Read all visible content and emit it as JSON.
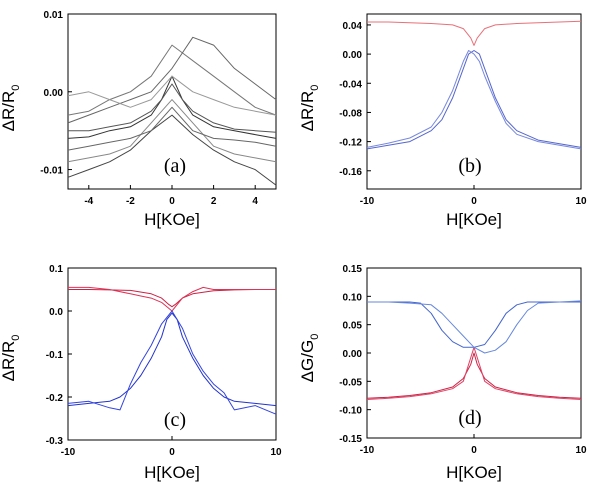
{
  "chart_data": [
    {
      "id": "a",
      "type": "line",
      "panel_label": "(a)",
      "xlabel": "H[KOe]",
      "ylabel": "ΔR/R",
      "ylabel_sub": "0",
      "xlim": [
        -5,
        5
      ],
      "ylim": [
        -0.0125,
        0.01
      ],
      "xticks": [
        {
          "v": -4,
          "t": "-4"
        },
        {
          "v": -2,
          "t": "-2"
        },
        {
          "v": 0,
          "t": "0"
        },
        {
          "v": 2,
          "t": "2"
        },
        {
          "v": 4,
          "t": "4"
        }
      ],
      "yticks": [
        {
          "v": 0.01,
          "t": "0.01"
        },
        {
          "v": 0.0,
          "t": "0.00"
        },
        {
          "v": -0.01,
          "t": "-0.01"
        }
      ],
      "series": [
        {
          "color": "#333333",
          "x": [
            -5,
            -4,
            -3,
            -2,
            -1,
            -0.5,
            0,
            0.5,
            1,
            2,
            3,
            4,
            5
          ],
          "y": [
            -0.006,
            -0.0058,
            -0.005,
            -0.0045,
            -0.003,
            -0.001,
            0.002,
            -0.001,
            -0.003,
            -0.0045,
            -0.005,
            -0.0055,
            -0.006
          ]
        },
        {
          "color": "#555555",
          "x": [
            -5,
            -4,
            -3,
            -2,
            -1,
            -0.5,
            0,
            0.5,
            1,
            2,
            3,
            4,
            5
          ],
          "y": [
            -0.005,
            -0.005,
            -0.0045,
            -0.004,
            -0.0025,
            -0.001,
            0.001,
            -0.001,
            -0.0025,
            -0.004,
            -0.0048,
            -0.005,
            -0.0052
          ]
        },
        {
          "color": "#777777",
          "x": [
            -5,
            -4,
            -3,
            -2,
            -1,
            0,
            0.5,
            1,
            2,
            3,
            4,
            5
          ],
          "y": [
            -0.003,
            -0.0025,
            -0.001,
            0.0,
            0.002,
            0.006,
            0.005,
            0.004,
            0.002,
            0.0,
            -0.002,
            -0.003
          ]
        },
        {
          "color": "#888888",
          "x": [
            -5,
            -4,
            -3,
            -2,
            -1,
            0,
            1,
            2,
            3,
            4,
            5
          ],
          "y": [
            -0.009,
            -0.0085,
            -0.008,
            -0.007,
            -0.004,
            -0.001,
            -0.004,
            -0.007,
            -0.008,
            -0.0085,
            -0.009
          ]
        },
        {
          "color": "#666666",
          "x": [
            -5,
            -4,
            -3,
            -2,
            -1,
            0,
            0.5,
            1,
            2,
            3,
            4,
            5
          ],
          "y": [
            -0.004,
            -0.003,
            -0.002,
            -0.001,
            0.0,
            0.003,
            0.005,
            0.007,
            0.006,
            0.003,
            0.001,
            -0.001
          ]
        },
        {
          "color": "#999999",
          "x": [
            -5,
            -4,
            -3,
            -2,
            -1,
            0,
            1,
            2,
            3,
            4,
            5
          ],
          "y": [
            -0.0005,
            0.0,
            -0.001,
            -0.002,
            -0.001,
            0.002,
            0.0,
            -0.001,
            -0.002,
            -0.0025,
            -0.003
          ]
        },
        {
          "color": "#444444",
          "x": [
            -5,
            -4,
            -3,
            -2,
            -1,
            0,
            1,
            2,
            3,
            4,
            5
          ],
          "y": [
            -0.011,
            -0.01,
            -0.009,
            -0.0075,
            -0.005,
            -0.003,
            -0.0055,
            -0.0075,
            -0.009,
            -0.01,
            -0.012
          ]
        },
        {
          "color": "#666666",
          "x": [
            -5,
            -4,
            -3,
            -2,
            -1,
            0,
            1,
            2,
            3,
            4,
            5
          ],
          "y": [
            -0.0075,
            -0.007,
            -0.0065,
            -0.006,
            -0.005,
            -0.002,
            -0.005,
            -0.006,
            -0.0062,
            -0.0065,
            -0.007
          ]
        }
      ]
    },
    {
      "id": "b",
      "type": "line",
      "panel_label": "(b)",
      "xlabel": "H[KOe]",
      "ylabel": "ΔR/R",
      "ylabel_sub": "0",
      "xlim": [
        -10,
        10
      ],
      "ylim": [
        -0.185,
        0.055
      ],
      "xticks": [
        {
          "v": -10,
          "t": "-10"
        },
        {
          "v": 0,
          "t": "0"
        },
        {
          "v": 10,
          "t": "10"
        }
      ],
      "yticks": [
        {
          "v": 0.04,
          "t": "0.04"
        },
        {
          "v": 0.0,
          "t": "0.00"
        },
        {
          "v": -0.04,
          "t": "-0.04"
        },
        {
          "v": -0.08,
          "t": "-0.08"
        },
        {
          "v": -0.12,
          "t": "-0.12"
        },
        {
          "v": -0.16,
          "t": "-0.16"
        }
      ],
      "series": [
        {
          "color": "#e8707a",
          "x": [
            -10,
            -8,
            -6,
            -4,
            -2,
            -1,
            -0.3,
            0,
            0.3,
            1,
            2,
            4,
            6,
            8,
            10
          ],
          "y": [
            0.044,
            0.044,
            0.043,
            0.042,
            0.04,
            0.035,
            0.022,
            0.012,
            0.022,
            0.035,
            0.04,
            0.042,
            0.043,
            0.044,
            0.045
          ]
        },
        {
          "color": "#5566cc",
          "x": [
            -10,
            -8,
            -6,
            -4,
            -3,
            -2,
            -1,
            -0.5,
            0,
            0.5,
            1,
            2,
            3,
            4,
            6,
            8,
            10
          ],
          "y": [
            -0.13,
            -0.125,
            -0.12,
            -0.105,
            -0.09,
            -0.06,
            -0.02,
            0.0,
            0.005,
            0.0,
            -0.02,
            -0.06,
            -0.09,
            -0.105,
            -0.118,
            -0.123,
            -0.128
          ]
        },
        {
          "color": "#7788dd",
          "x": [
            -10,
            -8,
            -6,
            -4,
            -3,
            -2,
            -1,
            -0.5,
            0,
            0.5,
            1,
            2,
            3,
            4,
            6,
            8,
            10
          ],
          "y": [
            -0.128,
            -0.122,
            -0.115,
            -0.1,
            -0.08,
            -0.05,
            -0.01,
            0.005,
            0.0,
            -0.01,
            -0.03,
            -0.065,
            -0.095,
            -0.11,
            -0.12,
            -0.125,
            -0.13
          ]
        }
      ]
    },
    {
      "id": "c",
      "type": "line",
      "panel_label": "(c)",
      "xlabel": "H[KOe]",
      "ylabel": "ΔR/R",
      "ylabel_sub": "0",
      "xlim": [
        -10,
        10
      ],
      "ylim": [
        -0.3,
        0.1
      ],
      "xticks": [
        {
          "v": -10,
          "t": "-10"
        },
        {
          "v": 0,
          "t": "0"
        },
        {
          "v": 10,
          "t": "10"
        }
      ],
      "yticks": [
        {
          "v": 0.1,
          "t": "0.1"
        },
        {
          "v": 0.0,
          "t": "0.0"
        },
        {
          "v": -0.1,
          "t": "-0.1"
        },
        {
          "v": -0.2,
          "t": "-0.2"
        },
        {
          "v": -0.3,
          "t": "-0.3"
        }
      ],
      "series": [
        {
          "color": "#cc2244",
          "x": [
            -10,
            -8,
            -6,
            -4,
            -2,
            -1,
            -0.3,
            0,
            0.3,
            1,
            2,
            4,
            6,
            8,
            10
          ],
          "y": [
            0.05,
            0.05,
            0.049,
            0.048,
            0.04,
            0.03,
            0.015,
            0.01,
            0.015,
            0.03,
            0.04,
            0.047,
            0.049,
            0.05,
            0.05
          ]
        },
        {
          "color": "#dd3355",
          "x": [
            -10,
            -8,
            -6,
            -4,
            -3,
            -2,
            -1,
            0,
            1,
            2,
            3,
            4,
            6,
            8,
            10
          ],
          "y": [
            0.055,
            0.055,
            0.05,
            0.04,
            0.035,
            0.03,
            0.02,
            0.0,
            0.03,
            0.045,
            0.055,
            0.05,
            0.05,
            0.05,
            0.05
          ]
        },
        {
          "color": "#2233cc",
          "x": [
            -10,
            -8,
            -6,
            -5,
            -4,
            -3,
            -2,
            -1,
            -0.5,
            0,
            0.5,
            1,
            2,
            3,
            4,
            5,
            6,
            8,
            10
          ],
          "y": [
            -0.22,
            -0.215,
            -0.21,
            -0.2,
            -0.18,
            -0.15,
            -0.11,
            -0.06,
            -0.02,
            -0.005,
            -0.02,
            -0.06,
            -0.11,
            -0.15,
            -0.18,
            -0.2,
            -0.21,
            -0.215,
            -0.22
          ]
        },
        {
          "color": "#3344dd",
          "x": [
            -10,
            -8,
            -6,
            -5,
            -4,
            -3,
            -2,
            -1,
            0,
            1,
            2,
            3,
            4,
            5,
            6,
            8,
            10
          ],
          "y": [
            -0.215,
            -0.21,
            -0.225,
            -0.23,
            -0.17,
            -0.12,
            -0.08,
            -0.03,
            0.0,
            -0.04,
            -0.1,
            -0.14,
            -0.17,
            -0.19,
            -0.23,
            -0.22,
            -0.24
          ]
        }
      ]
    },
    {
      "id": "d",
      "type": "line",
      "panel_label": "(d)",
      "xlabel": "H[KOe]",
      "ylabel": "ΔG/G",
      "ylabel_sub": "0",
      "xlim": [
        -10,
        10
      ],
      "ylim": [
        -0.15,
        0.15
      ],
      "xticks": [
        {
          "v": -10,
          "t": "-10"
        },
        {
          "v": 0,
          "t": "0"
        },
        {
          "v": 10,
          "t": "10"
        }
      ],
      "yticks": [
        {
          "v": 0.15,
          "t": "0.15"
        },
        {
          "v": 0.1,
          "t": "0.10"
        },
        {
          "v": 0.05,
          "t": "0.05"
        },
        {
          "v": 0.0,
          "t": "0.00"
        },
        {
          "v": -0.05,
          "t": "-0.05"
        },
        {
          "v": -0.1,
          "t": "-0.10"
        },
        {
          "v": -0.15,
          "t": "-0.15"
        }
      ],
      "series": [
        {
          "color": "#cc2244",
          "x": [
            -10,
            -8,
            -6,
            -4,
            -2,
            -1,
            -0.3,
            0,
            0.3,
            1,
            2,
            4,
            6,
            8,
            10
          ],
          "y": [
            -0.08,
            -0.078,
            -0.075,
            -0.07,
            -0.06,
            -0.045,
            -0.02,
            0.0,
            -0.02,
            -0.045,
            -0.06,
            -0.07,
            -0.075,
            -0.078,
            -0.08
          ]
        },
        {
          "color": "#dd4466",
          "x": [
            -10,
            -8,
            -6,
            -4,
            -2,
            -1,
            0,
            1,
            2,
            4,
            6,
            8,
            10
          ],
          "y": [
            -0.082,
            -0.08,
            -0.077,
            -0.072,
            -0.063,
            -0.05,
            0.01,
            -0.05,
            -0.063,
            -0.072,
            -0.077,
            -0.08,
            -0.082
          ]
        },
        {
          "color": "#4466cc",
          "x": [
            -10,
            -8,
            -6,
            -5,
            -4,
            -3,
            -2,
            -1,
            0,
            1,
            2,
            3,
            4,
            5,
            6,
            8,
            10
          ],
          "y": [
            0.09,
            0.09,
            0.09,
            0.088,
            0.07,
            0.04,
            0.02,
            0.01,
            0.01,
            0.015,
            0.04,
            0.07,
            0.085,
            0.09,
            0.09,
            0.09,
            0.09
          ]
        },
        {
          "color": "#6688dd",
          "x": [
            -10,
            -8,
            -6,
            -4,
            -3,
            -2,
            -1,
            0,
            1,
            2,
            3,
            4,
            5,
            6,
            8,
            10
          ],
          "y": [
            0.09,
            0.09,
            0.088,
            0.085,
            0.07,
            0.05,
            0.03,
            0.01,
            0.0,
            0.005,
            0.02,
            0.05,
            0.075,
            0.088,
            0.09,
            0.092
          ]
        }
      ]
    }
  ]
}
